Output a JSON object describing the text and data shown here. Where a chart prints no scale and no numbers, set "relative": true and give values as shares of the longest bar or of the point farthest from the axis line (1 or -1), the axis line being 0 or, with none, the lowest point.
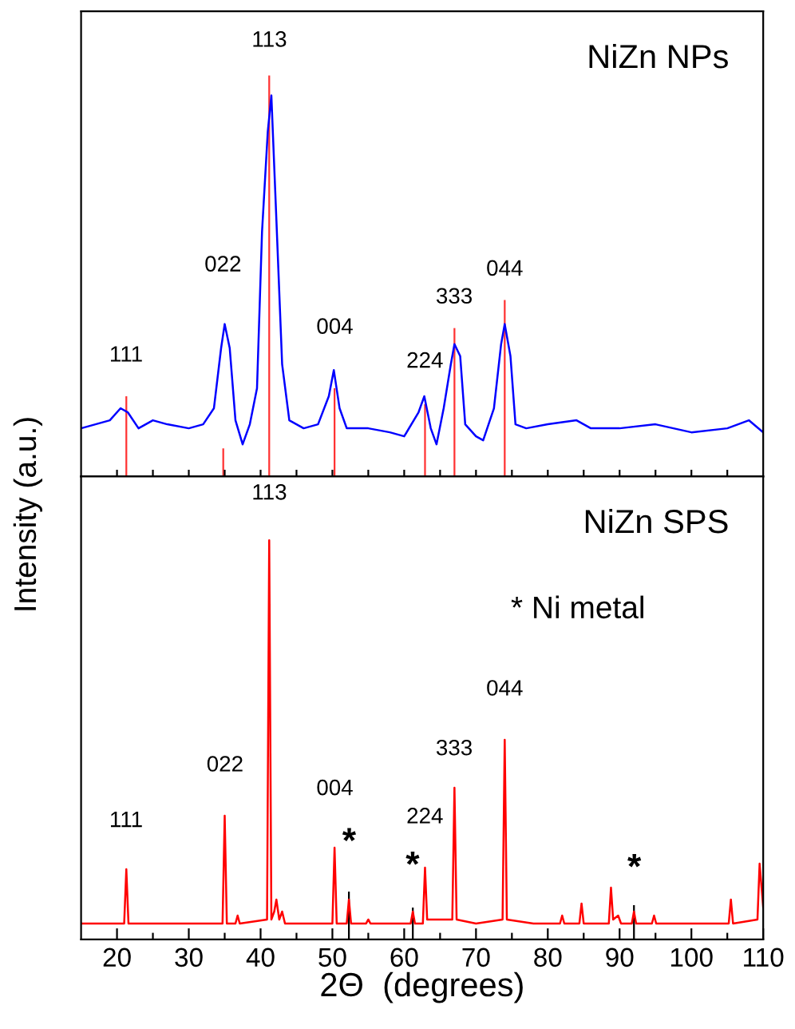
{
  "chart_data": [
    {
      "type": "line",
      "title": "NiZn NPs",
      "ylabel": "Intensity (a.u.)",
      "relative": true,
      "xlim": [
        15,
        110
      ],
      "xticks": [
        {
          "value": 20,
          "label": null
        },
        {
          "value": 25,
          "label": null
        },
        {
          "value": 30,
          "label": null
        },
        {
          "value": 35,
          "label": null
        },
        {
          "value": 40,
          "label": null
        },
        {
          "value": 45,
          "label": null
        },
        {
          "value": 50,
          "label": null
        },
        {
          "value": 55,
          "label": null
        },
        {
          "value": 60,
          "label": null
        },
        {
          "value": 65,
          "label": null
        },
        {
          "value": 70,
          "label": null
        },
        {
          "value": 75,
          "label": null
        },
        {
          "value": 80,
          "label": null
        },
        {
          "value": 85,
          "label": null
        },
        {
          "value": 90,
          "label": null
        },
        {
          "value": 95,
          "label": null
        },
        {
          "value": 100,
          "label": null
        },
        {
          "value": 105,
          "label": null
        }
      ],
      "tick_labels": false,
      "grid": false,
      "legend": false,
      "series": [
        {
          "color": "#0000ff",
          "x": [
            15,
            17,
            19,
            20.5,
            21.5,
            23,
            25,
            27,
            30,
            32,
            33.5,
            34.5,
            35,
            35.7,
            36.5,
            37.5,
            38.5,
            39.5,
            40.2,
            41.0,
            41.5,
            42.2,
            43,
            44,
            46,
            48,
            49.5,
            50.2,
            51,
            52,
            55,
            58,
            60,
            62,
            62.8,
            63.7,
            64.5,
            65.5,
            66.5,
            67.0,
            67.8,
            68.5,
            70,
            71,
            72.5,
            73.5,
            74.0,
            74.8,
            75.5,
            77,
            80,
            84,
            86,
            90,
            95,
            100,
            105,
            108,
            110
          ],
          "values": [
            0.12,
            0.13,
            0.14,
            0.17,
            0.16,
            0.12,
            0.14,
            0.13,
            0.12,
            0.13,
            0.17,
            0.32,
            0.38,
            0.32,
            0.14,
            0.08,
            0.13,
            0.22,
            0.61,
            0.86,
            0.95,
            0.64,
            0.28,
            0.14,
            0.12,
            0.13,
            0.2,
            0.265,
            0.17,
            0.12,
            0.12,
            0.11,
            0.1,
            0.16,
            0.2,
            0.12,
            0.08,
            0.17,
            0.28,
            0.33,
            0.3,
            0.13,
            0.1,
            0.09,
            0.17,
            0.33,
            0.38,
            0.3,
            0.13,
            0.12,
            0.13,
            0.14,
            0.12,
            0.12,
            0.13,
            0.11,
            0.12,
            0.14,
            0.11
          ]
        },
        {
          "type": "bar",
          "color": "#ff3333",
          "x": [
            21.3,
            34.8,
            41.2,
            50.3,
            62.9,
            67.0,
            74.0
          ],
          "values": [
            0.2,
            0.07,
            1,
            0.22,
            0.18,
            0.37,
            0.44
          ]
        }
      ],
      "annotations": [
        "111",
        "022",
        "113",
        "004",
        "224",
        "333",
        "044"
      ]
    },
    {
      "type": "line",
      "title": "NiZn SPS",
      "xlabel": "2Θ  (degrees)",
      "relative": true,
      "xlim": [
        15,
        110
      ],
      "xticks": [
        20,
        {
          "value": 25,
          "label": null
        },
        30,
        {
          "value": 35,
          "label": null
        },
        40,
        {
          "value": 45,
          "label": null
        },
        50,
        {
          "value": 55,
          "label": null
        },
        60,
        {
          "value": 65,
          "label": null
        },
        70,
        {
          "value": 75,
          "label": null
        },
        80,
        {
          "value": 85,
          "label": null
        },
        90,
        {
          "value": 95,
          "label": null
        },
        100,
        {
          "value": 105,
          "label": null
        },
        110
      ],
      "tick_labels": "x",
      "grid": false,
      "legend": false,
      "series": [
        {
          "color": "#ff0000",
          "x": [
            15,
            18,
            21.0,
            21.3,
            21.6,
            25,
            30,
            34.7,
            35.0,
            35.3,
            36.5,
            36.8,
            37.1,
            40.9,
            41.2,
            41.5,
            41.9,
            42.2,
            42.6,
            43.0,
            43.4,
            46,
            50.0,
            50.3,
            50.6,
            52.0,
            52.3,
            52.6,
            54.7,
            55,
            55.3,
            58,
            60.9,
            61.2,
            61.5,
            62.6,
            62.9,
            63.2,
            66.7,
            67.0,
            67.3,
            70,
            73.7,
            74.0,
            74.3,
            78,
            81.7,
            82,
            82.3,
            84.4,
            84.7,
            85.0,
            88.5,
            88.8,
            89.1,
            89.8,
            90.2,
            91.7,
            92.0,
            92.3,
            94.5,
            94.8,
            95.1,
            100,
            105.2,
            105.5,
            105.8,
            109.2,
            109.5,
            110
          ],
          "values": [
            0.04,
            0.04,
            0.04,
            0.176,
            0.04,
            0.04,
            0.04,
            0.04,
            0.31,
            0.04,
            0.04,
            0.06,
            0.04,
            0.05,
            1.0,
            0.05,
            0.07,
            0.1,
            0.05,
            0.07,
            0.04,
            0.04,
            0.04,
            0.23,
            0.04,
            0.04,
            0.1,
            0.04,
            0.04,
            0.05,
            0.04,
            0.04,
            0.04,
            0.07,
            0.04,
            0.04,
            0.18,
            0.05,
            0.05,
            0.38,
            0.05,
            0.04,
            0.05,
            0.5,
            0.05,
            0.04,
            0.04,
            0.06,
            0.04,
            0.04,
            0.09,
            0.04,
            0.04,
            0.13,
            0.05,
            0.06,
            0.04,
            0.04,
            0.07,
            0.04,
            0.04,
            0.06,
            0.04,
            0.04,
            0.04,
            0.1,
            0.04,
            0.05,
            0.19,
            0.08
          ]
        },
        {
          "type": "bar",
          "color": "#000000",
          "x": [
            52.3,
            61.2,
            92.0
          ],
          "values": [
            0.12,
            0.08,
            0.086
          ]
        }
      ],
      "annotations": [
        "111",
        "022",
        "113",
        "004",
        "224",
        "333",
        "044",
        "*",
        "*",
        "*",
        "* Ni metal"
      ]
    }
  ]
}
